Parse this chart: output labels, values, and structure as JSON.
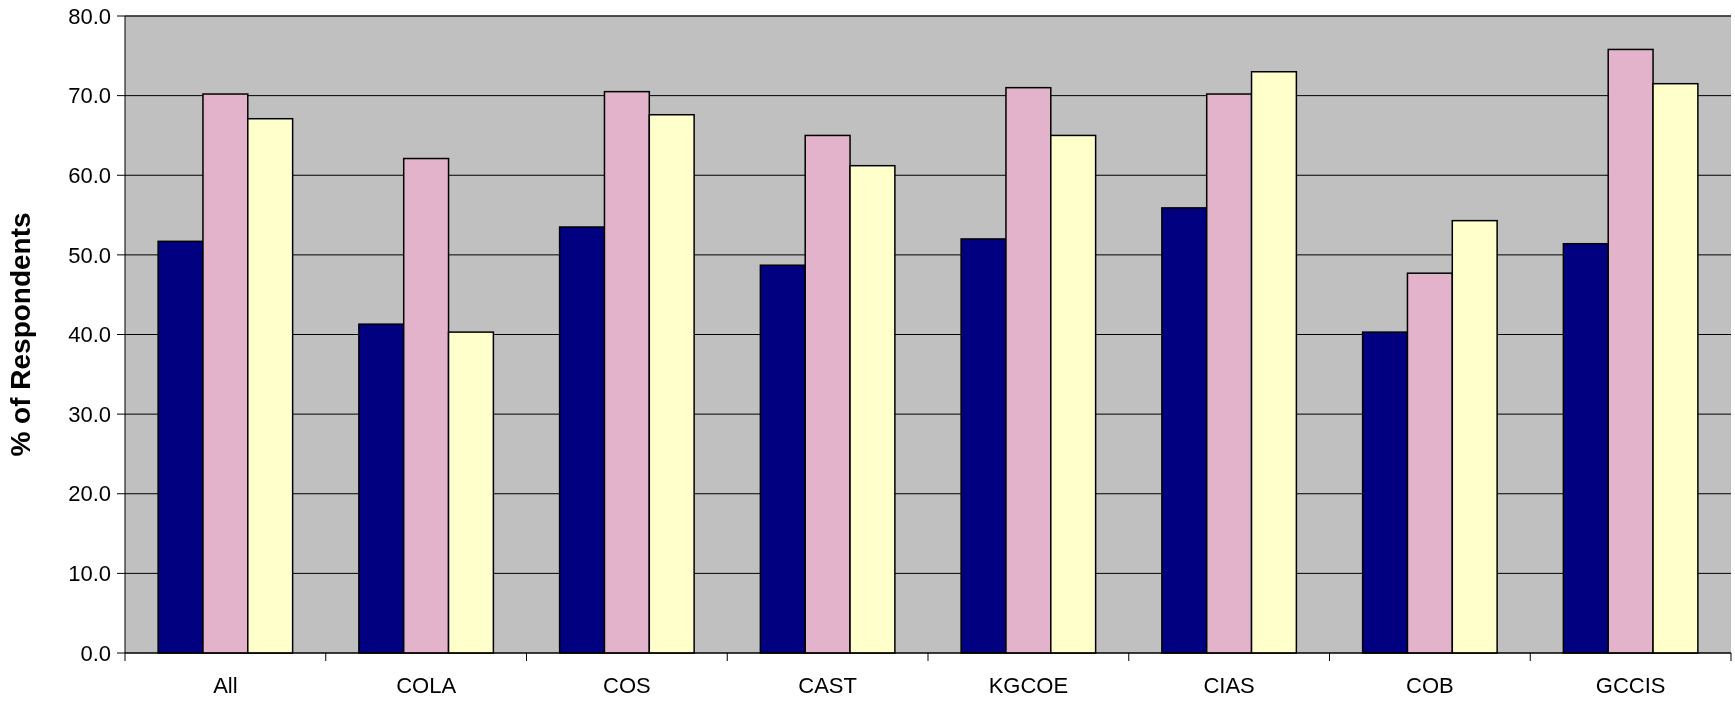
{
  "chart_data": {
    "type": "bar",
    "ylabel": "% of Respondents",
    "categories": [
      "All",
      "COLA",
      "COS",
      "CAST",
      "KGCOE",
      "CIAS",
      "COB",
      "GCCIS"
    ],
    "series": [
      {
        "color": "#000080",
        "values": [
          51.7,
          41.3,
          53.5,
          48.7,
          52.0,
          55.9,
          40.3,
          51.4
        ]
      },
      {
        "color": "#e3b3cb",
        "values": [
          70.2,
          62.1,
          70.5,
          65.0,
          71.0,
          70.2,
          47.7,
          75.8
        ]
      },
      {
        "color": "#ffffcc",
        "values": [
          67.1,
          40.3,
          67.6,
          61.2,
          65.0,
          73.0,
          54.3,
          71.5
        ]
      }
    ],
    "ylim": [
      0,
      80
    ],
    "yticks": [
      {
        "value": 0,
        "label": "0.0"
      },
      {
        "value": 10,
        "label": "10.0"
      },
      {
        "value": 20,
        "label": "20.0"
      },
      {
        "value": 30,
        "label": "30.0"
      },
      {
        "value": 40,
        "label": "40.0"
      },
      {
        "value": 50,
        "label": "50.0"
      },
      {
        "value": 60,
        "label": "60.0"
      },
      {
        "value": 70,
        "label": "70.0"
      },
      {
        "value": 80,
        "label": "80.0"
      }
    ],
    "grid": "y"
  }
}
